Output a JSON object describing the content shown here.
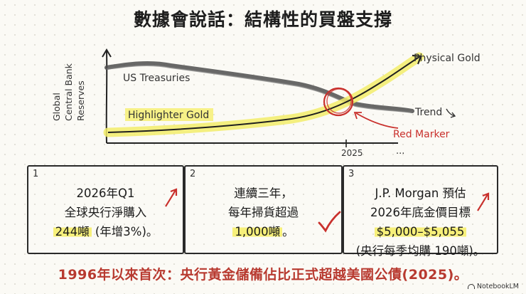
{
  "title": "數據會說話：結構性的買盤支撐",
  "chart": {
    "y_axis_label_lines": [
      "Global",
      "Central Bank",
      "Reserves"
    ],
    "x_tick_label": "2025",
    "x_ellipsis": "...",
    "series_labels": {
      "us_treasuries": "US Treasuries",
      "physical_gold": "Physical Gold",
      "highlighter_gold": "Highlighter Gold"
    },
    "trend_label": "Trend",
    "red_marker_label": "Red Marker",
    "colors": {
      "treasuries_line": "#5a5a5a",
      "gold_line": "#1f1f1f",
      "highlighter": "#f2ec6a",
      "marker_red": "#c9302c"
    }
  },
  "panels": [
    {
      "number": "1",
      "line1": "2026年Q1",
      "line2": "全球央行淨購入",
      "highlight": "244噸",
      "after": " (年增3%)。"
    },
    {
      "number": "2",
      "line1": "連續三年，",
      "line2": "每年掃貨超過",
      "highlight": "1,000噸",
      "after": "。"
    },
    {
      "number": "3",
      "line1": "J.P. Morgan 預估",
      "line2": "2026年底金價目標",
      "highlight": "$5,000–$5,055",
      "line4": "(央行每季均購 190噸)。"
    }
  ],
  "footer": "1996年以來首次：央行黃金儲備佔比正式超越美國公債(2025)。",
  "brand": "NotebookLM"
}
